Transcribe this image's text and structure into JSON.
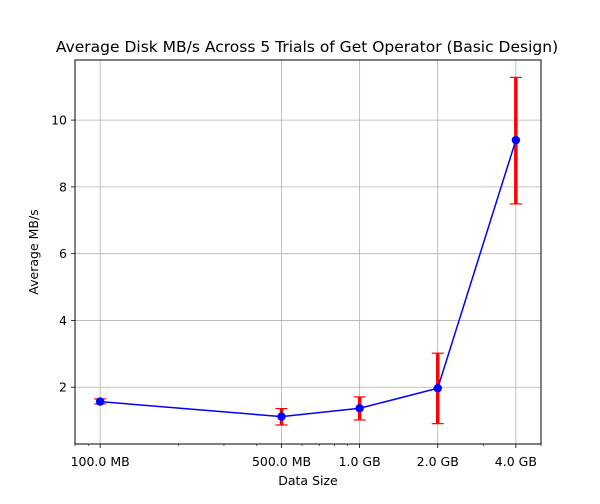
{
  "chart_data": {
    "type": "line",
    "title": "Average Disk MB/s Across 5 Trials of Get Operator (Basic Design)",
    "xlabel": "Data Size",
    "ylabel": "Average MB/s",
    "x_scale": "log",
    "x_unit": "MB",
    "x": [
      100,
      500,
      1000,
      2000,
      4000
    ],
    "x_tick_labels": [
      "100.0 MB",
      "500.0 MB",
      "1.0 GB",
      "2.0 GB",
      "4.0 GB"
    ],
    "xlim": [
      80,
      5000
    ],
    "ylim": [
      0.3,
      11.8
    ],
    "y_ticks": [
      2,
      4,
      6,
      8,
      10
    ],
    "grid": true,
    "series": [
      {
        "values": [
          1.57,
          1.12,
          1.37,
          1.97,
          9.4
        ],
        "error_low": [
          1.5,
          0.87,
          1.02,
          0.91,
          7.49
        ],
        "error_high": [
          1.65,
          1.36,
          1.71,
          3.02,
          11.28
        ],
        "line_color": "#0000ff",
        "marker_color": "#0000ff",
        "error_color": "#ff0000"
      }
    ]
  }
}
